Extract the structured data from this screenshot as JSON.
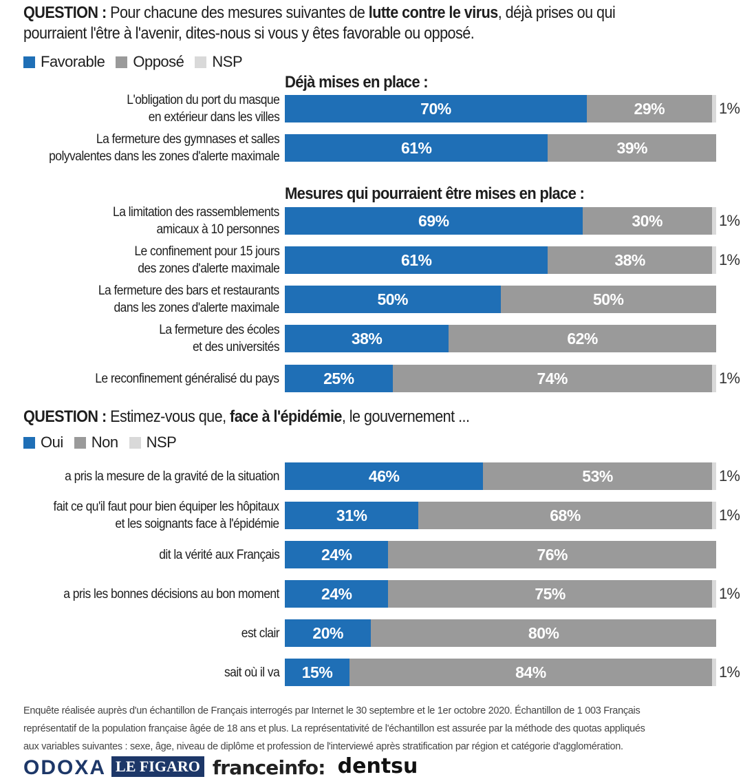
{
  "q1": {
    "prefix": "QUESTION :",
    "text_a": " Pour chacune des mesures suivantes de ",
    "text_bold": "lutte contre le virus",
    "text_b": ", déjà prises ou qui",
    "text_line2": "pourraient l'être à l'avenir, dites-nous si vous y êtes favorable ou opposé."
  },
  "legend1": [
    {
      "label": "Favorable",
      "color": "#1f6fb6"
    },
    {
      "label": "Opposé",
      "color": "#9a9a9a"
    },
    {
      "label": "NSP",
      "color": "#d9d9d9"
    }
  ],
  "subheads": {
    "already": "Déjà mises en place :",
    "future": "Mesures qui pourraient être mises en place :"
  },
  "q2": {
    "prefix": "QUESTION :",
    "text_a": " Estimez-vous que, ",
    "text_bold": "face à l'épidémie",
    "text_b": ", le gouvernement ..."
  },
  "legend2": [
    {
      "label": "Oui",
      "color": "#1f6fb6"
    },
    {
      "label": "Non",
      "color": "#9a9a9a"
    },
    {
      "label": "NSP",
      "color": "#d9d9d9"
    }
  ],
  "chart_data": [
    {
      "type": "bar",
      "orientation": "horizontal",
      "stacked": true,
      "title": "Déjà mises en place :",
      "series": [
        {
          "name": "Favorable",
          "values": [
            70,
            61
          ]
        },
        {
          "name": "Opposé",
          "values": [
            29,
            39
          ]
        },
        {
          "name": "NSP",
          "values": [
            1,
            0
          ]
        }
      ],
      "categories": [
        [
          "L'obligation du port du masque",
          "en extérieur dans les villes"
        ],
        [
          "La fermeture des gymnases et salles",
          "polyvalentes dans les zones d'alerte maximale"
        ]
      ],
      "fav_labels": [
        "70%",
        "61%"
      ],
      "opp_labels": [
        "29%",
        "39%"
      ],
      "nsp_labels": [
        "1%",
        ""
      ]
    },
    {
      "type": "bar",
      "orientation": "horizontal",
      "stacked": true,
      "title": "Mesures qui pourraient être mises en place :",
      "series": [
        {
          "name": "Favorable",
          "values": [
            69,
            61,
            50,
            38,
            25
          ]
        },
        {
          "name": "Opposé",
          "values": [
            30,
            38,
            50,
            62,
            74
          ]
        },
        {
          "name": "NSP",
          "values": [
            1,
            1,
            0,
            0,
            1
          ]
        }
      ],
      "categories": [
        [
          "La limitation des rassemblements",
          "amicaux à 10 personnes"
        ],
        [
          "Le confinement pour 15 jours",
          "des zones d'alerte maximale"
        ],
        [
          "La fermeture des bars et restaurants",
          "dans les zones d'alerte maximale"
        ],
        [
          "La fermeture des écoles",
          "et des universités"
        ],
        [
          "Le reconfinement généralisé du pays"
        ]
      ],
      "fav_labels": [
        "69%",
        "61%",
        "50%",
        "38%",
        "25%"
      ],
      "opp_labels": [
        "30%",
        "38%",
        "50%",
        "62%",
        "74%"
      ],
      "nsp_labels": [
        "1%",
        "1%",
        "",
        "",
        "1%"
      ]
    },
    {
      "type": "bar",
      "orientation": "horizontal",
      "stacked": true,
      "title": "Estimez-vous que, face à l'épidémie, le gouvernement ...",
      "series": [
        {
          "name": "Oui",
          "values": [
            46,
            31,
            24,
            24,
            20,
            15
          ]
        },
        {
          "name": "Non",
          "values": [
            53,
            68,
            76,
            75,
            80,
            84
          ]
        },
        {
          "name": "NSP",
          "values": [
            1,
            1,
            0,
            1,
            0,
            1
          ]
        }
      ],
      "categories": [
        [
          "a pris la mesure de la gravité de la situation"
        ],
        [
          "fait ce qu'il faut pour bien équiper les hôpitaux",
          "et les soignants face à l'épidémie"
        ],
        [
          "dit la vérité aux Français"
        ],
        [
          "a pris les bonnes décisions au bon moment"
        ],
        [
          "est clair"
        ],
        [
          "sait où il va"
        ]
      ],
      "fav_labels": [
        "46%",
        "31%",
        "24%",
        "24%",
        "20%",
        "15%"
      ],
      "opp_labels": [
        "53%",
        "68%",
        "76%",
        "75%",
        "80%",
        "84%"
      ],
      "nsp_labels": [
        "1%",
        "1%",
        "",
        "1%",
        "",
        "1%"
      ]
    }
  ],
  "footnote": {
    "line1": "Enquête réalisée auprès d'un échantillon de Français interrogés par Internet le 30 septembre et le 1er octobre 2020. Échantillon de 1 003 Français",
    "line2": "représentatif de la population française âgée de 18 ans et plus. La représentativité de l'échantillon est assurée par la méthode des quotas appliqués",
    "line3": "aux variables suivantes : sexe, âge, niveau de diplôme et profession de l'interviewé après stratification par région et catégorie d'agglomération."
  },
  "logos": {
    "odoxa": "ODOXA",
    "figaro": "LE FIGARO",
    "franceinfo": "franceinfo:",
    "dentsu": "dentsu"
  }
}
